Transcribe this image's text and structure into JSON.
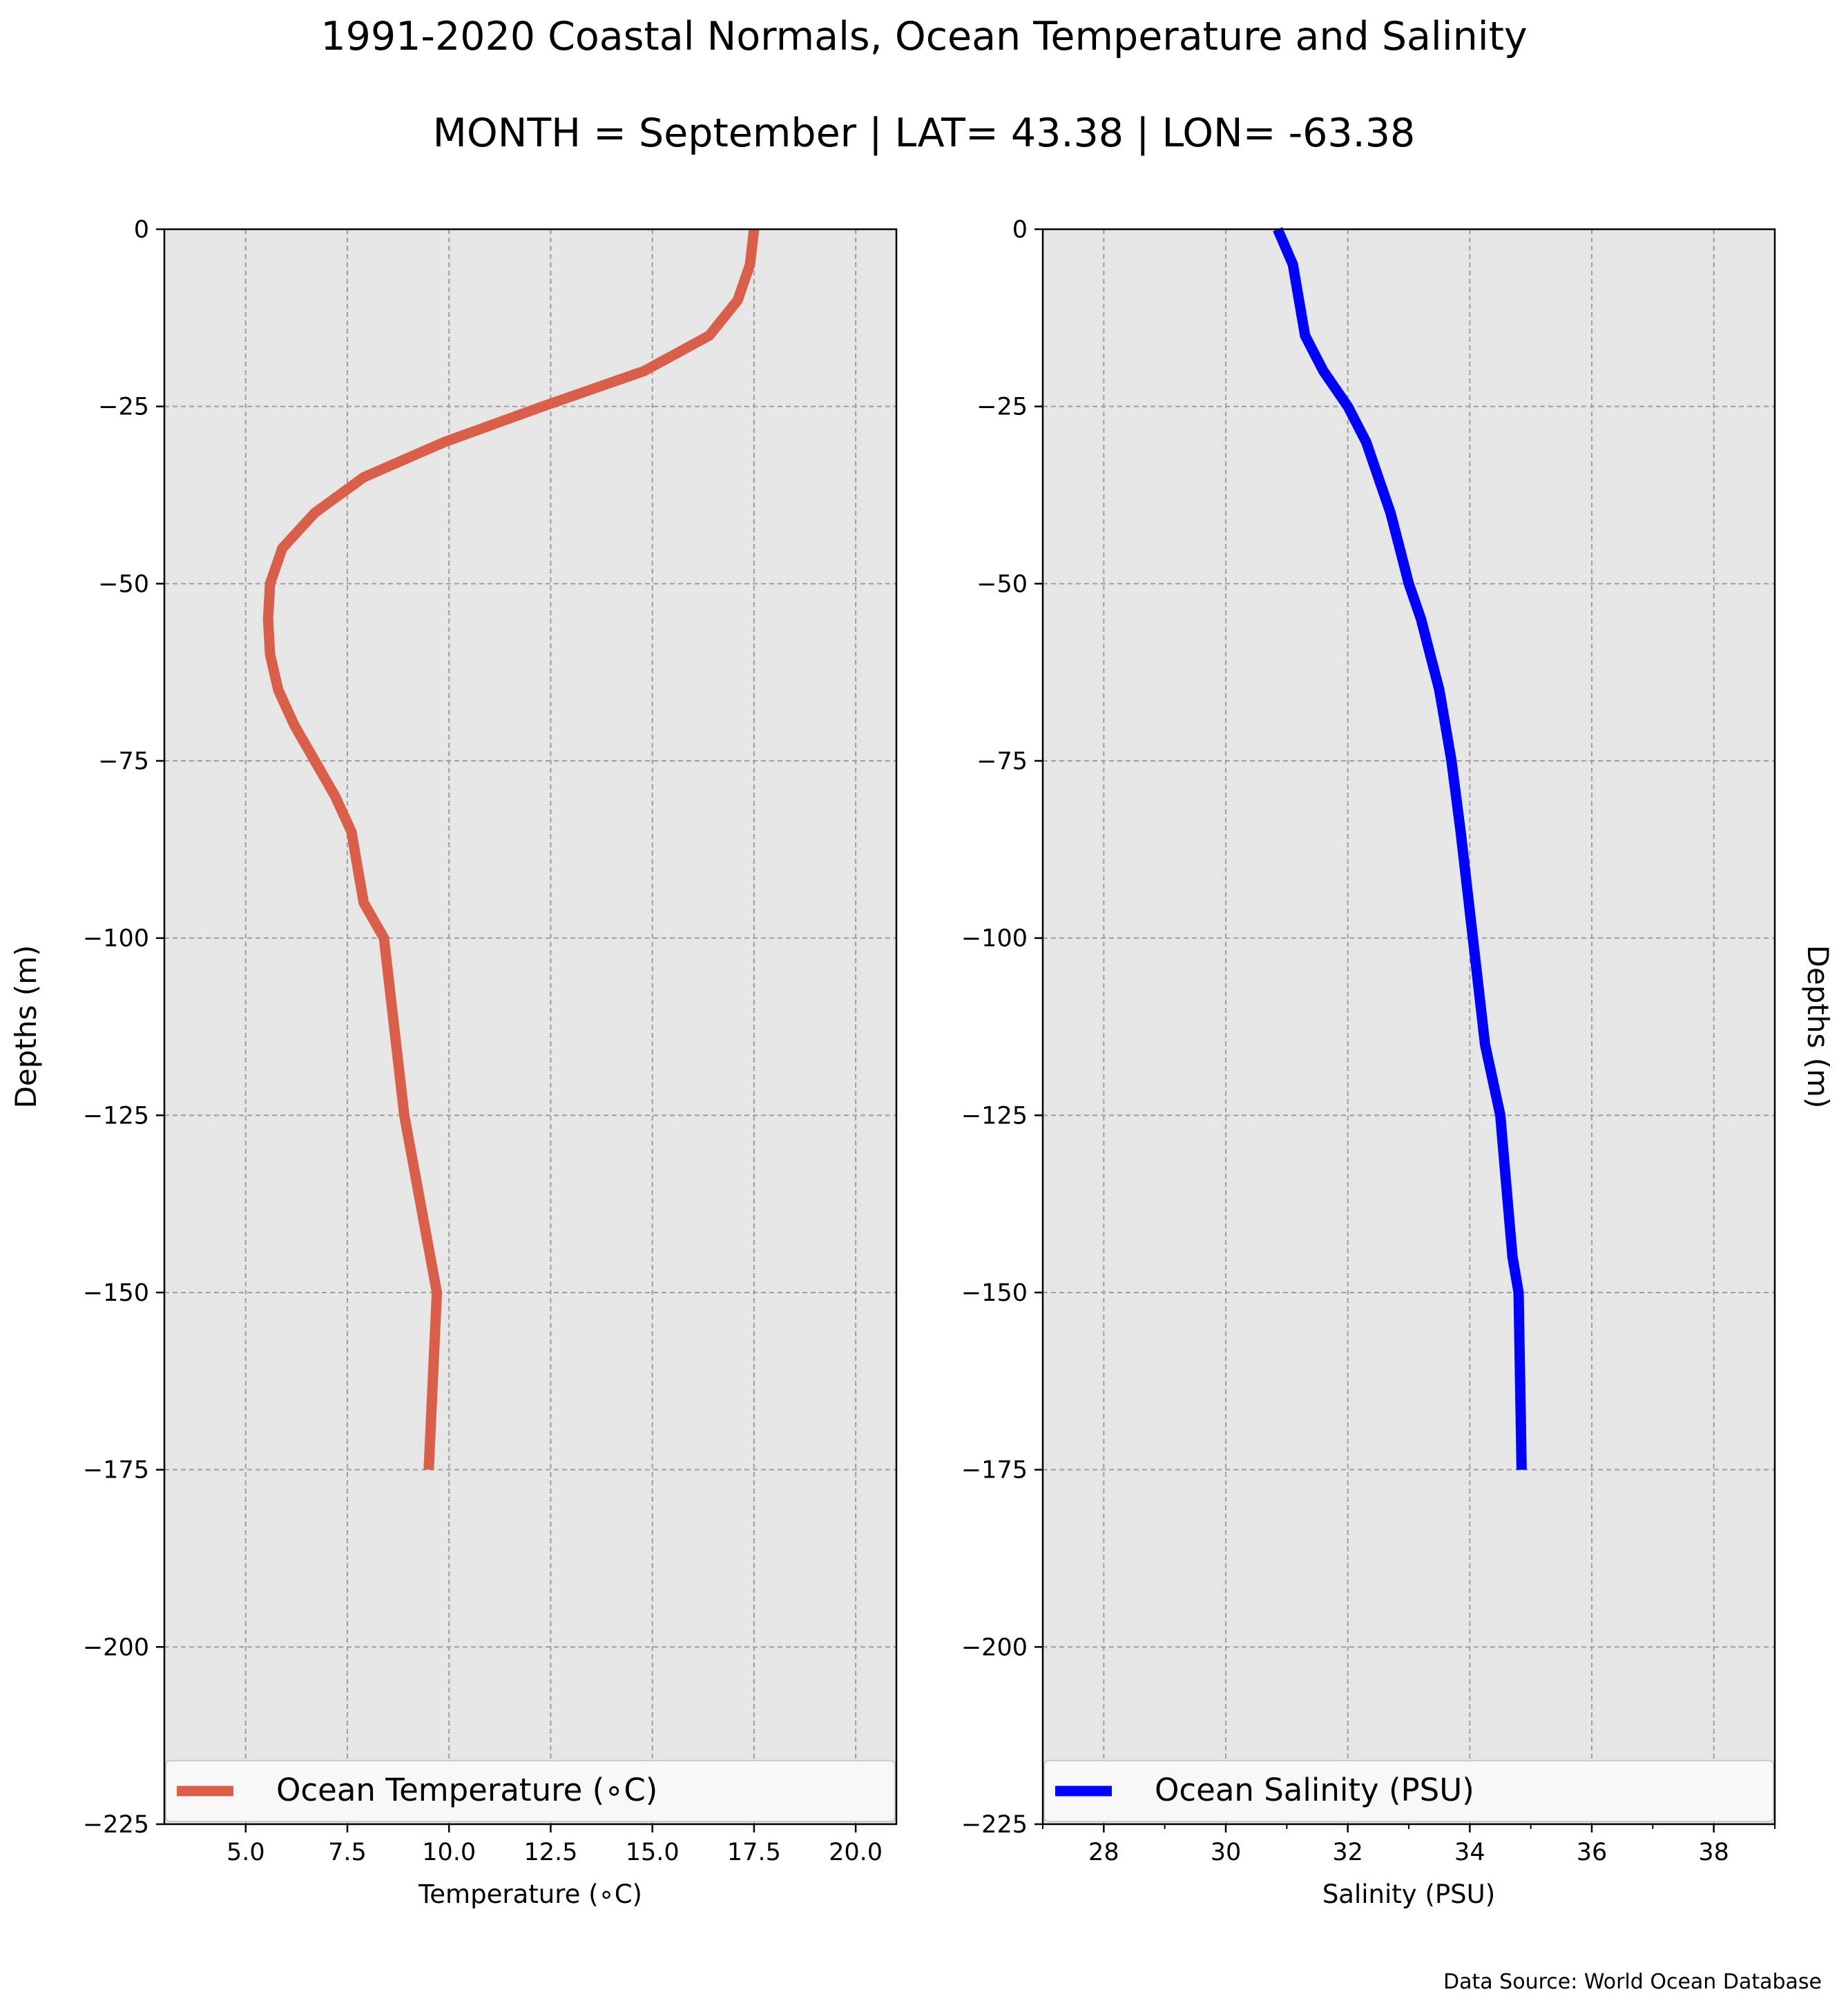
{
  "title": "1991-2020 Coastal Normals, Ocean Temperature and Salinity",
  "subtitle": "MONTH = September | LAT= 43.38 | LON= -63.38",
  "source_note": "Data Source: World Ocean Database",
  "colors": {
    "temperature_line": "#d95f4b",
    "salinity_line": "#0000ff",
    "plot_background": "#e6e6e6",
    "grid": "#9e9e9e"
  },
  "chart_data": [
    {
      "type": "line",
      "xlabel": "Temperature ($^\\circ$C)",
      "xlabel_display": "Temperature (∘C)",
      "ylabel": "Depths (m)",
      "ylabel_side": "left",
      "xlim": [
        3,
        21
      ],
      "ylim": [
        -225,
        0
      ],
      "xticks": [
        5.0,
        7.5,
        10.0,
        12.5,
        15.0,
        17.5,
        20.0
      ],
      "xtick_labels": [
        "5.0",
        "7.5",
        "10.0",
        "12.5",
        "15.0",
        "17.5",
        "20.0"
      ],
      "yticks": [
        0,
        -25,
        -50,
        -75,
        -100,
        -125,
        -150,
        -175,
        -200,
        -225
      ],
      "ytick_labels": [
        "0",
        "−25",
        "−50",
        "−75",
        "−100",
        "−125",
        "−150",
        "−175",
        "−200",
        "−225"
      ],
      "grid": true,
      "legend_position": "bottom",
      "series": [
        {
          "name": "Ocean Temperature (∘C)",
          "color": "#d95f4b",
          "x": [
            17.5,
            17.4,
            17.1,
            16.4,
            14.8,
            12.3,
            9.9,
            7.9,
            6.7,
            5.9,
            5.6,
            5.55,
            5.6,
            5.8,
            6.2,
            6.7,
            7.2,
            7.6,
            7.9,
            8.4,
            8.9,
            9.7,
            9.5
          ],
          "y": [
            0,
            -5,
            -10,
            -15,
            -20,
            -25,
            -30,
            -35,
            -40,
            -45,
            -50,
            -55,
            -60,
            -65,
            -70,
            -75,
            -80,
            -85,
            -95,
            -100,
            -125,
            -150,
            -175
          ]
        }
      ]
    },
    {
      "type": "line",
      "xlabel": "Salinity (PSU)",
      "ylabel": "Depths (m)",
      "ylabel_side": "right",
      "xlim": [
        27,
        39
      ],
      "ylim": [
        -225,
        0
      ],
      "xticks": [
        28,
        30,
        32,
        34,
        36,
        38
      ],
      "xtick_labels": [
        "28",
        "30",
        "32",
        "34",
        "36",
        "38"
      ],
      "yticks": [
        0,
        -25,
        -50,
        -75,
        -100,
        -125,
        -150,
        -175,
        -200,
        -225
      ],
      "ytick_labels": [
        "0",
        "−25",
        "−50",
        "−75",
        "−100",
        "−125",
        "−150",
        "−175",
        "−200",
        "−225"
      ],
      "grid": true,
      "legend_position": "bottom",
      "series": [
        {
          "name": "Ocean Salinity (PSU)",
          "color": "#0000ff",
          "x": [
            30.85,
            31.1,
            31.2,
            31.3,
            31.6,
            32.0,
            32.3,
            32.5,
            32.7,
            32.85,
            33.0,
            33.2,
            33.35,
            33.5,
            33.7,
            33.85,
            34.05,
            34.25,
            34.5,
            34.6,
            34.7,
            34.8,
            34.85
          ],
          "y": [
            0,
            -5,
            -10,
            -15,
            -20,
            -25,
            -30,
            -35,
            -40,
            -45,
            -50,
            -55,
            -60,
            -65,
            -75,
            -85,
            -100,
            -115,
            -125,
            -135,
            -145,
            -150,
            -175
          ]
        }
      ]
    }
  ]
}
